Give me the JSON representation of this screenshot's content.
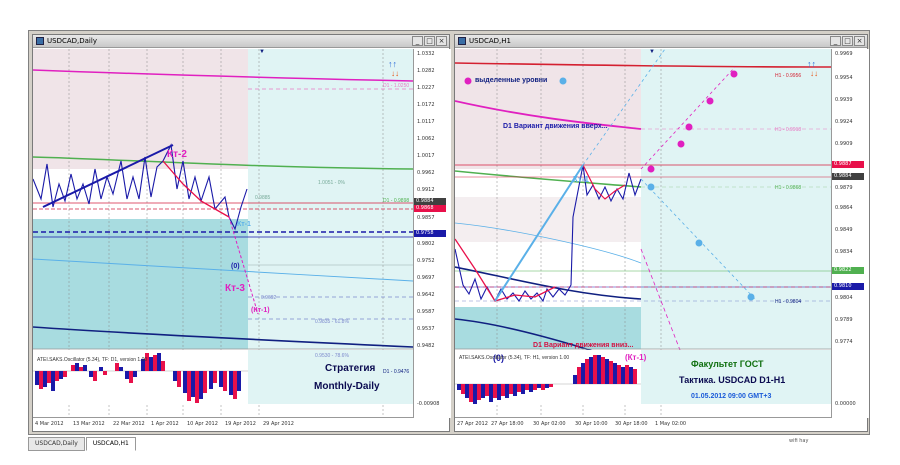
{
  "left": {
    "title": "USDCAD,Daily",
    "oscillator": "ATEI.SAKS.Oscillator (5.34), TF: D1, version 1.00",
    "prices": [
      "1.0332",
      "1.0282",
      "1.0227",
      "1.0172",
      "1.0117",
      "1.0062",
      "1.0017",
      "0.9962",
      "0.9912",
      "0.9857",
      "0.9802",
      "0.9752",
      "0.9697",
      "0.9642",
      "0.9587",
      "0.9537",
      "0.9482",
      "0.9437"
    ],
    "osc_ticks": [
      "",
      "-0.00908"
    ],
    "badge_a": "0.9884",
    "badge_b": "0.9868",
    "badge_c": "0.9758",
    "dates": [
      "4 Mar 2012",
      "13 Mar 2012",
      "22 Mar 2012",
      "1 Apr 2012",
      "10 Apr 2012",
      "19 Apr 2012",
      "29 Apr 2012"
    ],
    "kt2": "Кт-2",
    "kt3": "Кт-3",
    "kt1": "Кт-1",
    "kt1p": "(Кт-1)",
    "zero": "(0)",
    "d1_a": "D1 - 1.0250",
    "d1_b": "D1 - 0.9898",
    "d1_c": "D1 - 0.9476",
    "fib_1": "1.0051 - 0%",
    "fib_2": "0.9835 - 61.8%",
    "fib_3": "0.9530 - 78.6%",
    "fib_4": "0.9692",
    "fib_5": "0.9885",
    "strategy_1": "Стратегия",
    "strategy_2": "Monthly-Daily"
  },
  "right": {
    "title": "USDCAD,H1",
    "oscillator": "ATEI.SAKS.Oscillator (5.34), TF: H1, version 1.00",
    "prices": [
      "0.9969",
      "0.9954",
      "0.9939",
      "0.9924",
      "0.9909",
      "0.9894",
      "0.9879",
      "0.9864",
      "0.9849",
      "0.9834",
      "0.9819",
      "0.9804",
      "0.9789",
      "0.9774"
    ],
    "osc_ticks": [
      "",
      "0.00000"
    ],
    "badge_a": "0.9887",
    "badge_b": "0.9884",
    "badge_c": "0.9822",
    "badge_d": "0.9810",
    "dates": [
      "27 Apr 2012",
      "27 Apr 18:00",
      "30 Apr 02:00",
      "30 Apr 10:00",
      "30 Apr 18:00",
      "1 May 02:00"
    ],
    "legend": "выделенные уровни",
    "up_variant": "D1 Вариант движения вверх...",
    "down_variant": "D1 Вариант движения вниз...",
    "kt1": "Кт-1",
    "kt1p": "(Кт-1)",
    "zero": "(0)",
    "h1_a": "H1 - 0.9956",
    "h1_b": "H1 - 0.9918",
    "h1_c": "H1 - 0.9868",
    "h1_d": "H1 - 0.9804",
    "faculty": "Факультет ГОСТ",
    "tactic": "Тактика. USDCAD D1-H1",
    "datetime": "01.05.2012 09:00 GMT+3"
  },
  "tabs": [
    "USDCAD,Daily",
    "USDCAD,H1"
  ],
  "status": "wifi hay",
  "colors": {
    "chart_bg": "#ffffff",
    "cyan_zone": "#e0f4f4",
    "teal_zone": "#a8dce0",
    "pink_zone": "#f0e4e8",
    "bull": "#1a1aa8",
    "bear": "#e8104a",
    "magenta": "#e020c0",
    "green": "#50b050",
    "navy": "#102080",
    "sky": "#5ab0e8"
  }
}
